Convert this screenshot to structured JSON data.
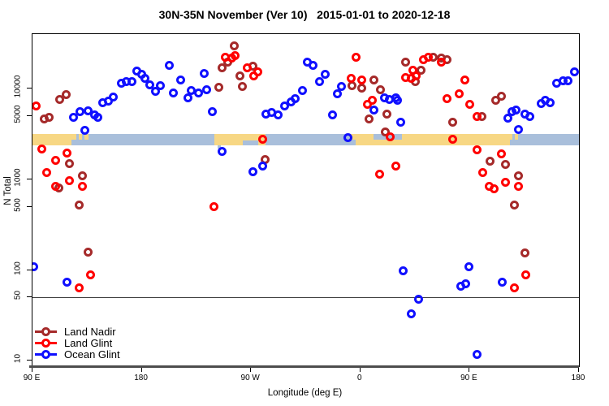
{
  "title": "30N-35N November (Ver 10)   2015-01-01 to 2020-12-18",
  "chart_data": {
    "type": "scatter",
    "title": "30N-35N November (Ver 10)   2015-01-01 to 2020-12-18",
    "xlabel": "Longitude (deg E)",
    "ylabel": "N Total",
    "x_axis": {
      "range": [
        90,
        540
      ],
      "unit": "deg E, wrapping 90E through 180, 90W, 0, back to 180",
      "ticks": [
        {
          "value": 90,
          "label": "90 E"
        },
        {
          "value": 180,
          "label": "180"
        },
        {
          "value": 270,
          "label": "90 W"
        },
        {
          "value": 360,
          "label": "0"
        },
        {
          "value": 450,
          "label": "90 E"
        },
        {
          "value": 540,
          "label": "180"
        }
      ]
    },
    "y_axis": {
      "scale": "log",
      "range": [
        8.5,
        40000
      ],
      "ticks": [
        {
          "value": 10000,
          "label": "10000"
        },
        {
          "value": 5000,
          "label": "5000"
        },
        {
          "value": 1000,
          "label": "1000"
        },
        {
          "value": 500,
          "label": "500"
        },
        {
          "value": 100,
          "label": "100"
        },
        {
          "value": 50,
          "label": "50"
        },
        {
          "value": 10,
          "label": "10"
        }
      ]
    },
    "reference_line": {
      "value": 50,
      "color": "#3d3d3d"
    },
    "map_band": {
      "description": "land/ocean strip map of the 30N-35N latitude band",
      "land_color": "#F7D784",
      "ocean_color": "#A9BFDB",
      "segments": [
        {
          "start": 90,
          "end": 122,
          "type": "land"
        },
        {
          "start": 122,
          "end": 240,
          "type": "ocean"
        },
        {
          "start": 240,
          "end": 282,
          "type": "land"
        },
        {
          "start": 282,
          "end": 356,
          "type": "ocean"
        },
        {
          "start": 356,
          "end": 483,
          "type": "land"
        },
        {
          "start": 483,
          "end": 540,
          "type": "ocean"
        }
      ],
      "details": [
        {
          "start": 122,
          "end": 126,
          "part": "top",
          "type": "land"
        },
        {
          "start": 128,
          "end": 131,
          "part": "top",
          "type": "land"
        },
        {
          "start": 132.5,
          "end": 136,
          "part": "top",
          "type": "land"
        },
        {
          "start": 263,
          "end": 276,
          "part": "bottom",
          "type": "ocean"
        },
        {
          "start": 242.5,
          "end": 245,
          "part": "below",
          "type": "ocean"
        },
        {
          "start": 371,
          "end": 394,
          "part": "top",
          "type": "ocean"
        },
        {
          "start": 352,
          "end": 356,
          "part": "top",
          "type": "land"
        },
        {
          "start": 483,
          "end": 485.5,
          "part": "top",
          "type": "land"
        },
        {
          "start": 487,
          "end": 490,
          "part": "top",
          "type": "land"
        }
      ]
    },
    "legend": {
      "position": "bottom-left",
      "items": [
        {
          "name": "Land Nadir",
          "color": "#A52A2A"
        },
        {
          "name": "Land Glint",
          "color": "#FF0000"
        },
        {
          "name": "Ocean Glint",
          "color": "#1010FF"
        }
      ]
    },
    "series": [
      {
        "name": "Land Nadir",
        "color": "#A52A2A",
        "points": [
          [
            112.7,
            7650
          ],
          [
            117.4,
            8650
          ],
          [
            99.4,
            4670
          ],
          [
            104,
            4870
          ],
          [
            120.1,
            1500
          ],
          [
            112,
            810
          ],
          [
            131.4,
            1100
          ],
          [
            128.1,
            525
          ],
          [
            135.5,
            156
          ],
          [
            256.4,
            29800
          ],
          [
            251.1,
            19700
          ],
          [
            245.8,
            17100
          ],
          [
            243.1,
            10400
          ],
          [
            261.1,
            13900
          ],
          [
            262.5,
            10600
          ],
          [
            271.2,
            17800
          ],
          [
            281.2,
            1670
          ],
          [
            353.4,
            10900
          ],
          [
            361.4,
            10200
          ],
          [
            366.8,
            4670
          ],
          [
            371.4,
            12500
          ],
          [
            376.8,
            9800
          ],
          [
            381.5,
            5280
          ],
          [
            380.8,
            3360
          ],
          [
            396.9,
            19700
          ],
          [
            409.6,
            16100
          ],
          [
            404.9,
            12000
          ],
          [
            420.2,
            22300
          ],
          [
            426.3,
            21900
          ],
          [
            431.6,
            21000
          ],
          [
            436.3,
            4300
          ],
          [
            460.3,
            4960
          ],
          [
            467,
            1600
          ],
          [
            471.7,
            7500
          ],
          [
            476.4,
            8300
          ],
          [
            479.7,
            1470
          ],
          [
            490.4,
            1100
          ],
          [
            487.1,
            525
          ],
          [
            495.8,
            153
          ]
        ]
      },
      {
        "name": "Land Glint",
        "color": "#FF0000",
        "points": [
          [
            92.7,
            6490
          ],
          [
            97.4,
            2180
          ],
          [
            108.7,
            1630
          ],
          [
            118.7,
            1960
          ],
          [
            102,
            1200
          ],
          [
            108.7,
            845
          ],
          [
            120.1,
            960
          ],
          [
            131.4,
            830
          ],
          [
            137.5,
            88
          ],
          [
            128.1,
            64
          ],
          [
            239.1,
            495
          ],
          [
            249.1,
            22300
          ],
          [
            254.4,
            21900
          ],
          [
            257.1,
            23300
          ],
          [
            266.5,
            17100
          ],
          [
            275.8,
            15400
          ],
          [
            272.5,
            13900
          ],
          [
            279.2,
            2790
          ],
          [
            356.1,
            22300
          ],
          [
            352.7,
            13100
          ],
          [
            361.4,
            12500
          ],
          [
            366.1,
            6760
          ],
          [
            370.1,
            7500
          ],
          [
            384.8,
            2970
          ],
          [
            376.1,
            1130
          ],
          [
            389.5,
            1410
          ],
          [
            411.6,
            21000
          ],
          [
            416.2,
            22300
          ],
          [
            426.9,
            19700
          ],
          [
            402.9,
            16100
          ],
          [
            396.9,
            13300
          ],
          [
            401.6,
            13100
          ],
          [
            406.2,
            13900
          ],
          [
            436.3,
            2790
          ],
          [
            446.3,
            12500
          ],
          [
            441.6,
            8830
          ],
          [
            431.6,
            7810
          ],
          [
            450.3,
            6760
          ],
          [
            456.3,
            4960
          ],
          [
            456.3,
            2130
          ],
          [
            461,
            1200
          ],
          [
            466.4,
            845
          ],
          [
            470.4,
            780
          ],
          [
            476.4,
            1920
          ],
          [
            479.7,
            920
          ],
          [
            490.4,
            830
          ],
          [
            496.4,
            88
          ],
          [
            487.1,
            64
          ]
        ]
      },
      {
        "name": "Ocean Glint",
        "color": "#1010FF",
        "points": [
          [
            91.3,
            108
          ],
          [
            118.7,
            73
          ],
          [
            132.8,
            3500
          ],
          [
            123.4,
            4870
          ],
          [
            128.8,
            5610
          ],
          [
            136.1,
            5730
          ],
          [
            140.8,
            5170
          ],
          [
            143.5,
            4870
          ],
          [
            147.5,
            7050
          ],
          [
            152.2,
            7340
          ],
          [
            156.2,
            8130
          ],
          [
            162.9,
            11600
          ],
          [
            166.9,
            12000
          ],
          [
            171.6,
            12000
          ],
          [
            176.2,
            15700
          ],
          [
            179.6,
            14500
          ],
          [
            182.9,
            13100
          ],
          [
            186.9,
            11100
          ],
          [
            191.6,
            9400
          ],
          [
            195.6,
            10900
          ],
          [
            202.3,
            18200
          ],
          [
            206.3,
            9000
          ],
          [
            211.7,
            12500
          ],
          [
            217.7,
            7960
          ],
          [
            221,
            9600
          ],
          [
            227,
            9000
          ],
          [
            231.1,
            14800
          ],
          [
            233.7,
            9800
          ],
          [
            238.4,
            5610
          ],
          [
            245.8,
            2050
          ],
          [
            271.8,
            1220
          ],
          [
            279.2,
            1410
          ],
          [
            282.5,
            5280
          ],
          [
            287.2,
            5500
          ],
          [
            292.5,
            5170
          ],
          [
            297.9,
            6490
          ],
          [
            303.2,
            7190
          ],
          [
            306.6,
            7810
          ],
          [
            312.6,
            9600
          ],
          [
            316.6,
            19700
          ],
          [
            321.3,
            18200
          ],
          [
            326,
            12000
          ],
          [
            331.3,
            14500
          ],
          [
            336.7,
            5170
          ],
          [
            341.3,
            8830
          ],
          [
            344.7,
            10600
          ],
          [
            350,
            2910
          ],
          [
            371.4,
            5850
          ],
          [
            380.1,
            7960
          ],
          [
            384.1,
            7650
          ],
          [
            389.5,
            7960
          ],
          [
            392.9,
            4300
          ],
          [
            390.2,
            7500
          ],
          [
            481.7,
            4770
          ],
          [
            485.1,
            5610
          ],
          [
            488.4,
            5850
          ],
          [
            495.8,
            5280
          ],
          [
            499.8,
            4960
          ],
          [
            509.1,
            6900
          ],
          [
            512.4,
            7500
          ],
          [
            516.4,
            7050
          ],
          [
            521.8,
            11600
          ],
          [
            527.2,
            12300
          ],
          [
            531.2,
            12300
          ],
          [
            536.5,
            15400
          ],
          [
            490.4,
            3560
          ],
          [
            394.9,
            99
          ],
          [
            449.6,
            108
          ],
          [
            443,
            66
          ],
          [
            447,
            71
          ],
          [
            477.1,
            73
          ],
          [
            407.6,
            48
          ],
          [
            401.6,
            33
          ],
          [
            456.3,
            11.7
          ]
        ]
      }
    ]
  }
}
